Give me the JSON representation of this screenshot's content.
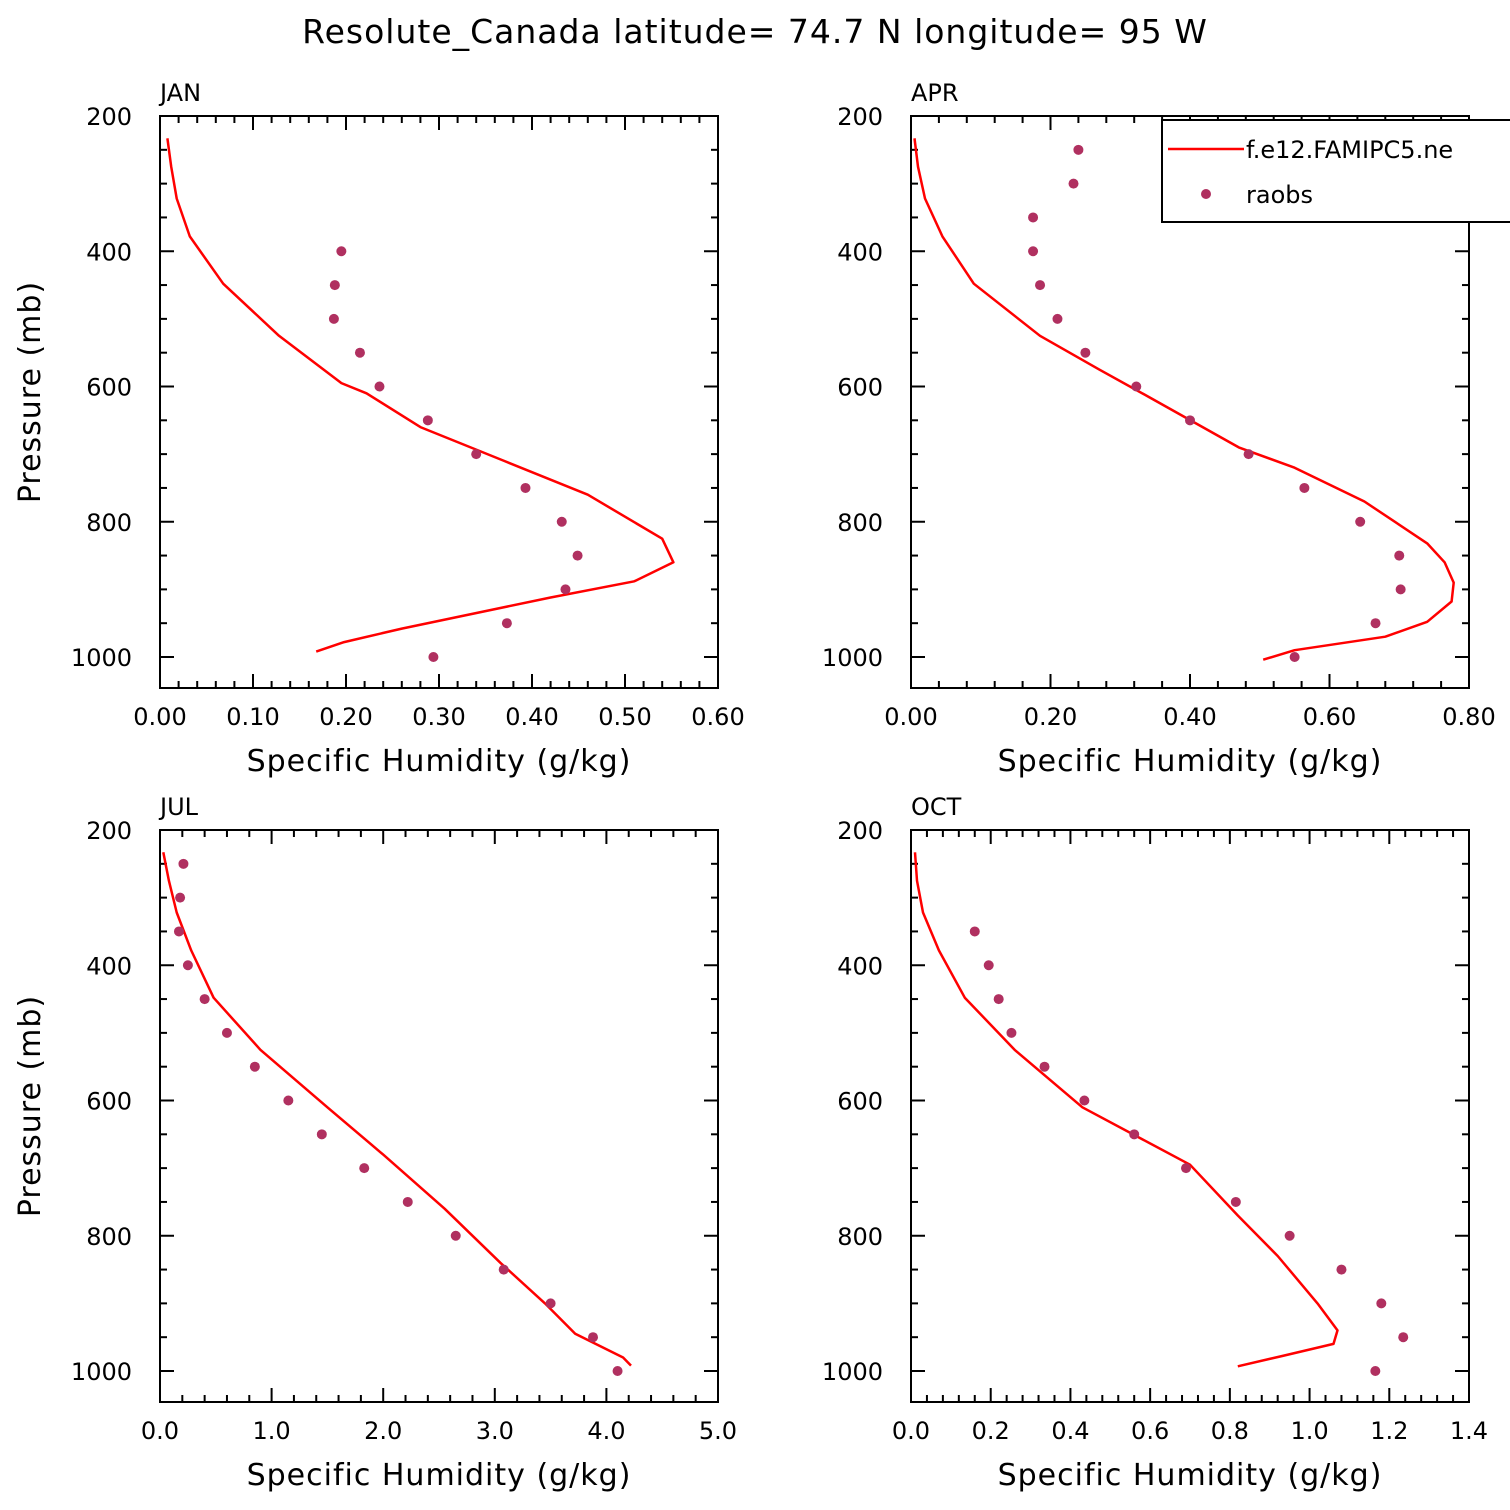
{
  "title": "Resolute_Canada  latitude= 74.7 N longitude= 95 W",
  "colors": {
    "model": "#ff0000",
    "obs": "#b03060",
    "axes": "#000000"
  },
  "legend": {
    "placement": "top-right",
    "model_label": "f.e12.FAMIPC5.ne",
    "obs_label": "raobs"
  },
  "chart_data": [
    {
      "type": "line",
      "panel": "JAN",
      "xlabel": "Specific Humidity (g/kg)",
      "ylabel": "Pressure (mb)",
      "xlim": [
        0.0,
        0.6
      ],
      "ylim": [
        1000,
        200
      ],
      "y_reversed": true,
      "grid": false,
      "xticks": [
        "0.00",
        "0.10",
        "0.20",
        "0.30",
        "0.40",
        "0.50",
        "0.60"
      ],
      "yticks": [
        "200",
        "400",
        "600",
        "800",
        "1000"
      ],
      "series": [
        {
          "name": "f.e12.FAMIPC5.ne",
          "style": "line",
          "x": [
            0.008,
            0.012,
            0.018,
            0.032,
            0.068,
            0.128,
            0.195,
            0.222,
            0.28,
            0.37,
            0.46,
            0.54,
            0.552,
            0.51,
            0.42,
            0.26,
            0.198,
            0.168
          ],
          "y": [
            233,
            275,
            322,
            378,
            448,
            525,
            595,
            610,
            660,
            710,
            760,
            825,
            860,
            888,
            912,
            958,
            978,
            992
          ]
        },
        {
          "name": "raobs",
          "style": "points",
          "x": [
            0.195,
            0.188,
            0.187,
            0.215,
            0.236,
            0.288,
            0.34,
            0.393,
            0.432,
            0.449,
            0.436,
            0.373,
            0.294
          ],
          "y": [
            400,
            450,
            500,
            550,
            600,
            650,
            700,
            750,
            800,
            850,
            900,
            950,
            1000
          ]
        }
      ]
    },
    {
      "type": "line",
      "panel": "APR",
      "xlabel": "Specific Humidity (g/kg)",
      "ylabel": "",
      "xlim": [
        0.0,
        0.8
      ],
      "ylim": [
        1000,
        200
      ],
      "y_reversed": true,
      "grid": false,
      "xticks": [
        "0.00",
        "0.20",
        "0.40",
        "0.60",
        "0.80"
      ],
      "yticks": [
        "200",
        "400",
        "600",
        "800",
        "1000"
      ],
      "legend_panel": true,
      "series": [
        {
          "name": "f.e12.FAMIPC5.ne",
          "style": "line",
          "x": [
            0.005,
            0.01,
            0.02,
            0.045,
            0.09,
            0.185,
            0.27,
            0.34,
            0.47,
            0.55,
            0.65,
            0.74,
            0.765,
            0.778,
            0.775,
            0.74,
            0.68,
            0.55,
            0.505
          ],
          "y": [
            233,
            275,
            322,
            378,
            448,
            525,
            575,
            615,
            690,
            720,
            770,
            832,
            860,
            890,
            918,
            948,
            970,
            990,
            1004
          ]
        },
        {
          "name": "raobs",
          "style": "points",
          "x": [
            0.24,
            0.233,
            0.175,
            0.175,
            0.185,
            0.21,
            0.25,
            0.323,
            0.4,
            0.484,
            0.564,
            0.644,
            0.7,
            0.702,
            0.666,
            0.55
          ],
          "y": [
            250,
            300,
            350,
            400,
            450,
            500,
            550,
            600,
            650,
            700,
            750,
            800,
            850,
            900,
            950,
            1000
          ]
        }
      ]
    },
    {
      "type": "line",
      "panel": "JUL",
      "xlabel": "Specific Humidity (g/kg)",
      "ylabel": "Pressure (mb)",
      "xlim": [
        0.0,
        5.0
      ],
      "ylim": [
        1000,
        200
      ],
      "y_reversed": true,
      "grid": false,
      "xticks": [
        "0.0",
        "1.0",
        "2.0",
        "3.0",
        "4.0",
        "5.0"
      ],
      "yticks": [
        "200",
        "400",
        "600",
        "800",
        "1000"
      ],
      "series": [
        {
          "name": "f.e12.FAMIPC5.ne",
          "style": "line",
          "x": [
            0.03,
            0.08,
            0.15,
            0.28,
            0.48,
            0.9,
            1.5,
            2.0,
            2.55,
            3.05,
            3.45,
            3.72,
            4.15,
            4.22
          ],
          "y": [
            233,
            275,
            322,
            378,
            448,
            525,
            610,
            680,
            760,
            840,
            900,
            945,
            980,
            992
          ]
        },
        {
          "name": "raobs",
          "style": "points",
          "x": [
            0.21,
            0.18,
            0.17,
            0.25,
            0.4,
            0.6,
            0.85,
            1.15,
            1.45,
            1.83,
            2.22,
            2.65,
            3.08,
            3.5,
            3.88,
            4.1
          ],
          "y": [
            250,
            300,
            350,
            400,
            450,
            500,
            550,
            600,
            650,
            700,
            750,
            800,
            850,
            900,
            950,
            1000
          ]
        }
      ]
    },
    {
      "type": "line",
      "panel": "OCT",
      "xlabel": "Specific Humidity (g/kg)",
      "ylabel": "",
      "xlim": [
        0.0,
        1.4
      ],
      "ylim": [
        1000,
        200
      ],
      "y_reversed": true,
      "grid": false,
      "xticks": [
        "0.0",
        "0.2",
        "0.4",
        "0.6",
        "0.8",
        "1.0",
        "1.2",
        "1.4"
      ],
      "yticks": [
        "200",
        "400",
        "600",
        "800",
        "1000"
      ],
      "series": [
        {
          "name": "f.e12.FAMIPC5.ne",
          "style": "line",
          "x": [
            0.01,
            0.015,
            0.03,
            0.07,
            0.135,
            0.26,
            0.43,
            0.7,
            0.82,
            0.92,
            1.02,
            1.07,
            1.06,
            0.93,
            0.82
          ],
          "y": [
            233,
            275,
            322,
            378,
            448,
            525,
            610,
            695,
            770,
            830,
            900,
            940,
            960,
            978,
            993
          ]
        },
        {
          "name": "raobs",
          "style": "points",
          "x": [
            0.16,
            0.195,
            0.22,
            0.252,
            0.335,
            0.435,
            0.56,
            0.69,
            0.815,
            0.95,
            1.08,
            1.18,
            1.235,
            1.165
          ],
          "y": [
            350,
            400,
            450,
            500,
            550,
            600,
            650,
            700,
            750,
            800,
            850,
            900,
            950,
            1000
          ]
        }
      ]
    }
  ]
}
